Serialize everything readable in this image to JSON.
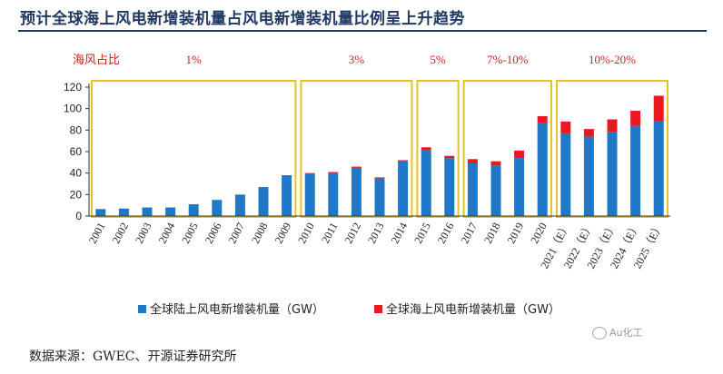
{
  "header": {
    "title": "预计全球海上风电新增装机量占风电新增装机量比例呈上升趋势"
  },
  "source": "数据来源：GWEC、开源证券研究所",
  "watermark": "Au化工",
  "chart_data": {
    "type": "bar",
    "stacked": true,
    "title": "",
    "xlabel": "",
    "ylabel": "",
    "ylim": [
      0,
      120
    ],
    "yticks": [
      0,
      20,
      40,
      60,
      80,
      100,
      120
    ],
    "grid": false,
    "legend_position": "bottom",
    "categories": [
      "2001",
      "2002",
      "2003",
      "2004",
      "2005",
      "2006",
      "2007",
      "2008",
      "2009",
      "2010",
      "2011",
      "2012",
      "2013",
      "2014",
      "2015",
      "2016",
      "2017",
      "2018",
      "2019",
      "2020",
      "2021（E）",
      "2022（E）",
      "2023（E）",
      "2024（E）",
      "2025（E）"
    ],
    "series": [
      {
        "name": "全球陆上风电新增装机量（GW）",
        "color": "#1f77c8",
        "values": [
          6.5,
          7,
          8,
          8,
          11,
          15,
          20,
          27,
          38,
          39,
          40,
          45,
          35,
          51,
          61,
          54,
          49,
          47,
          54,
          87,
          77,
          74,
          78,
          84,
          88
        ]
      },
      {
        "name": "全球海上风电新增装机量（GW）",
        "color": "#e8191f",
        "values": [
          0,
          0,
          0,
          0,
          0,
          0,
          0,
          0,
          0,
          1,
          1,
          1,
          1,
          1,
          3,
          2,
          4,
          4,
          7,
          6,
          11,
          7,
          12,
          14,
          24
        ]
      }
    ],
    "annotation_label": "海风占比",
    "annotations": [
      {
        "text": "1%",
        "from": 0,
        "to": 8
      },
      {
        "text": "3%",
        "from": 9,
        "to": 13
      },
      {
        "text": "5%",
        "from": 14,
        "to": 15
      },
      {
        "text": "7%-10%",
        "from": 16,
        "to": 19
      },
      {
        "text": "10%-20%",
        "from": 20,
        "to": 24
      }
    ],
    "box_color": "#e6c229",
    "annotation_color": "#d11f1f"
  }
}
